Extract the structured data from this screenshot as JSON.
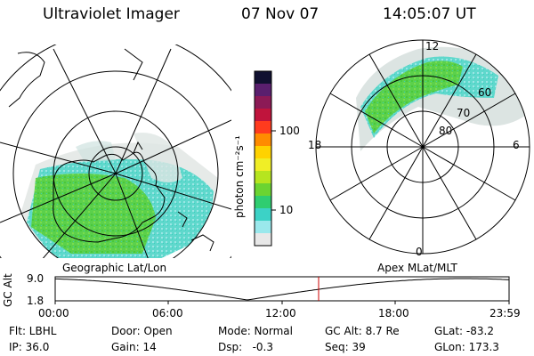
{
  "header": {
    "instrument": "Ultraviolet Imager",
    "date": "07 Nov 07",
    "time": "14:05:07 UT"
  },
  "colorbar": {
    "unit_label": "photon cm⁻²s⁻¹",
    "ticks": [
      "100",
      "10"
    ],
    "colors": [
      "#101030",
      "#5a1f6e",
      "#8c1a56",
      "#c0143c",
      "#ff3b1e",
      "#ff8c00",
      "#ffd200",
      "#f0ee26",
      "#b6e51f",
      "#6bd431",
      "#2fcd70",
      "#3cd2c6",
      "#9ae8ec",
      "#e8e8e8"
    ]
  },
  "left_map": {
    "label": "Geographic Lat/Lon"
  },
  "right_map": {
    "label": "Apex MLat/MLT",
    "lat_labels": [
      "60",
      "70",
      "80"
    ],
    "mlt_labels": {
      "top": "12",
      "left": "18",
      "right": "6",
      "bottom": "0"
    }
  },
  "alt_plot": {
    "ylabel": "GC Alt",
    "y_ticks": [
      "9.0",
      "1.8"
    ],
    "x_ticks": [
      "00:00",
      "06:00",
      "12:00",
      "18:00",
      "23:59"
    ],
    "marker_color": "#cc0000"
  },
  "footer": {
    "filter": "Flt: LBHL",
    "ip": "IP: 36.0",
    "door": "Door: Open",
    "gain": "Gain: 14",
    "mode": "Mode: Normal",
    "dsp": "Dsp:   -0.3",
    "gc_alt": "GC Alt: 8.7 Re",
    "seq": "Seq: 39",
    "glat": "GLat: -83.2",
    "glon": "GLon: 173.3"
  }
}
